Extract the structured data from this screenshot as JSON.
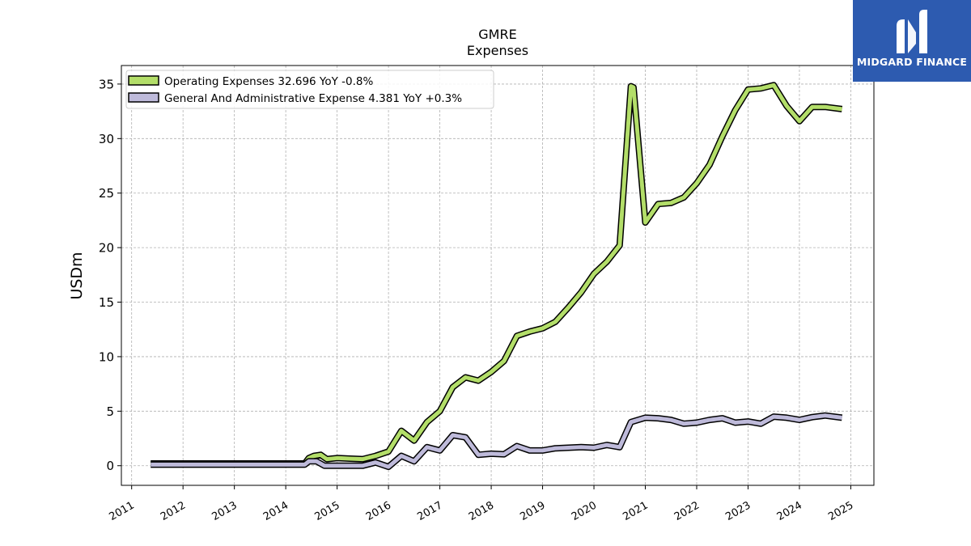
{
  "logo": {
    "text": "MIDGARD FINANCE",
    "color": "#2d5bb0",
    "icon": "midgard-logo-icon"
  },
  "chart_data": {
    "type": "line",
    "title": "GMRE",
    "subtitle": "Expenses",
    "xlabel": "",
    "ylabel": "USDm",
    "xlim": [
      2010.8,
      2025.45
    ],
    "ylim": [
      -1.8,
      36.7
    ],
    "grid": true,
    "legend_position": "top-left",
    "x_ticks": [
      "2011",
      "2012",
      "2013",
      "2014",
      "2015",
      "2016",
      "2017",
      "2018",
      "2019",
      "2020",
      "2021",
      "2022",
      "2023",
      "2024",
      "2025"
    ],
    "y_ticks": [
      "0",
      "5",
      "10",
      "15",
      "20",
      "25",
      "30",
      "35"
    ],
    "series": [
      {
        "name": "Operating Expenses",
        "legend_label": "Operating Expenses  32.696 YoY -0.8%",
        "color": "#b3de69",
        "x": [
          2011.37,
          2011.62,
          2011.87,
          2012.12,
          2012.37,
          2012.62,
          2012.87,
          2013.12,
          2013.37,
          2013.62,
          2013.87,
          2014.12,
          2014.37,
          2014.45,
          2014.55,
          2014.68,
          2014.8,
          2015.0,
          2015.25,
          2015.5,
          2015.75,
          2016.0,
          2016.25,
          2016.5,
          2016.75,
          2017.0,
          2017.25,
          2017.5,
          2017.75,
          2018.0,
          2018.25,
          2018.5,
          2018.75,
          2019.0,
          2019.25,
          2019.5,
          2019.75,
          2020.0,
          2020.25,
          2020.5,
          2020.72,
          2020.77,
          2021.0,
          2021.25,
          2021.5,
          2021.75,
          2022.0,
          2022.25,
          2022.5,
          2022.75,
          2023.0,
          2023.25,
          2023.5,
          2023.75,
          2024.0,
          2024.25,
          2024.5,
          2024.83
        ],
        "values": [
          0.2,
          0.2,
          0.2,
          0.2,
          0.2,
          0.2,
          0.2,
          0.2,
          0.2,
          0.2,
          0.2,
          0.2,
          0.2,
          0.7,
          0.9,
          1.0,
          0.6,
          0.7,
          0.65,
          0.6,
          0.9,
          1.3,
          3.2,
          2.3,
          4.0,
          5.0,
          7.2,
          8.1,
          7.8,
          8.6,
          9.6,
          11.9,
          12.3,
          12.6,
          13.2,
          14.5,
          15.9,
          17.6,
          18.7,
          20.2,
          34.8,
          34.7,
          22.3,
          24.0,
          24.1,
          24.6,
          25.9,
          27.6,
          30.2,
          32.6,
          34.5,
          34.6,
          34.9,
          33.0,
          31.6,
          32.9,
          32.9,
          32.7
        ]
      },
      {
        "name": "General And Administrative Expense",
        "legend_label": "General And Administrative Expense  4.381 YoY +0.3%",
        "color": "#bebada",
        "x": [
          2011.37,
          2011.62,
          2011.87,
          2012.12,
          2012.37,
          2012.62,
          2012.87,
          2013.12,
          2013.37,
          2013.62,
          2013.87,
          2014.12,
          2014.37,
          2014.45,
          2014.6,
          2014.75,
          2015.0,
          2015.25,
          2015.5,
          2015.75,
          2016.0,
          2016.25,
          2016.5,
          2016.75,
          2017.0,
          2017.25,
          2017.5,
          2017.75,
          2018.0,
          2018.25,
          2018.5,
          2018.75,
          2019.0,
          2019.25,
          2019.5,
          2019.75,
          2020.0,
          2020.25,
          2020.5,
          2020.72,
          2021.0,
          2021.25,
          2021.5,
          2021.75,
          2022.0,
          2022.25,
          2022.5,
          2022.75,
          2023.0,
          2023.25,
          2023.5,
          2023.75,
          2024.0,
          2024.25,
          2024.5,
          2024.83
        ],
        "values": [
          0.1,
          0.1,
          0.1,
          0.1,
          0.1,
          0.1,
          0.1,
          0.1,
          0.1,
          0.1,
          0.1,
          0.1,
          0.1,
          0.4,
          0.4,
          0.0,
          0.0,
          0.0,
          0.0,
          0.3,
          -0.1,
          0.9,
          0.4,
          1.7,
          1.4,
          2.8,
          2.6,
          1.0,
          1.1,
          1.05,
          1.8,
          1.4,
          1.4,
          1.6,
          1.65,
          1.7,
          1.65,
          1.9,
          1.7,
          4.0,
          4.4,
          4.35,
          4.2,
          3.85,
          3.95,
          4.2,
          4.35,
          3.95,
          4.05,
          3.85,
          4.5,
          4.4,
          4.2,
          4.45,
          4.6,
          4.4
        ]
      }
    ]
  }
}
